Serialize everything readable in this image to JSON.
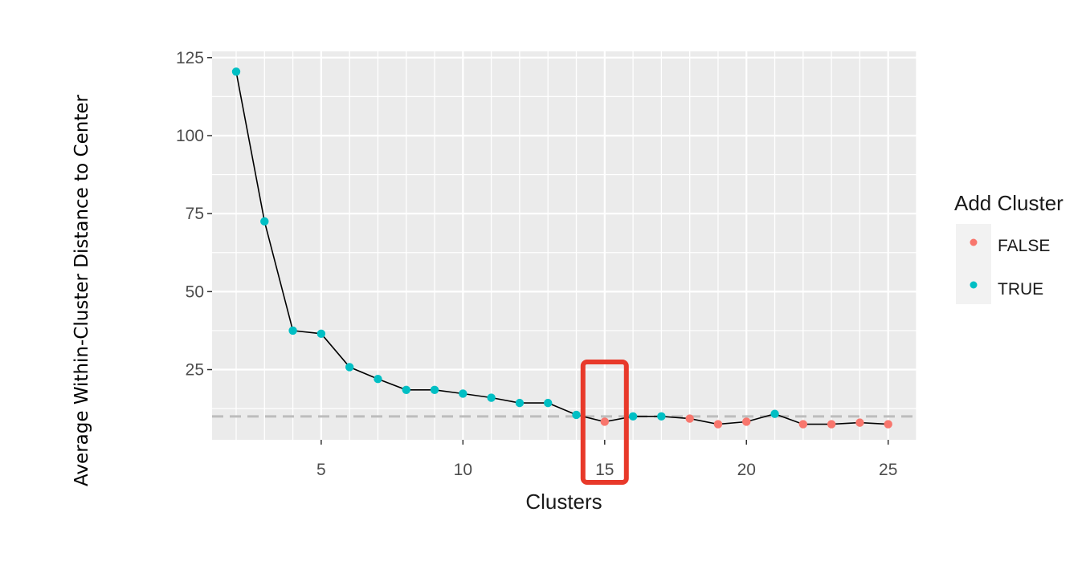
{
  "chart_data": {
    "type": "scatter",
    "xlabel": "Clusters",
    "ylabel": "Average Within-Cluster Distance to Center",
    "xlim": [
      1.15,
      26.0
    ],
    "ylim": [
      2.5,
      127
    ],
    "x_ticks": [
      5,
      10,
      15,
      20,
      25
    ],
    "y_ticks": [
      25,
      50,
      75,
      100,
      125
    ],
    "grid": true,
    "connecting_line": true,
    "reference_line": {
      "y": 10,
      "style": "dashed",
      "color": "#bdbdbd"
    },
    "highlight_box": {
      "x": 15,
      "color": "#e8392a"
    },
    "legend": {
      "title": "Add Cluster",
      "placement": "right",
      "entries": [
        {
          "label": "FALSE",
          "color": "#f8766d"
        },
        {
          "label": "TRUE",
          "color": "#00bfc4"
        }
      ]
    },
    "points": [
      {
        "x": 2,
        "y": 120.5,
        "group": "TRUE"
      },
      {
        "x": 3,
        "y": 72.5,
        "group": "TRUE"
      },
      {
        "x": 4,
        "y": 37.5,
        "group": "TRUE"
      },
      {
        "x": 5,
        "y": 36.5,
        "group": "TRUE"
      },
      {
        "x": 6,
        "y": 25.8,
        "group": "TRUE"
      },
      {
        "x": 7,
        "y": 22.0,
        "group": "TRUE"
      },
      {
        "x": 8,
        "y": 18.5,
        "group": "TRUE"
      },
      {
        "x": 9,
        "y": 18.5,
        "group": "TRUE"
      },
      {
        "x": 10,
        "y": 17.3,
        "group": "TRUE"
      },
      {
        "x": 11,
        "y": 16.0,
        "group": "TRUE"
      },
      {
        "x": 12,
        "y": 14.3,
        "group": "TRUE"
      },
      {
        "x": 13,
        "y": 14.3,
        "group": "TRUE"
      },
      {
        "x": 14,
        "y": 10.5,
        "group": "TRUE"
      },
      {
        "x": 15,
        "y": 8.3,
        "group": "FALSE"
      },
      {
        "x": 16,
        "y": 10.0,
        "group": "TRUE"
      },
      {
        "x": 17,
        "y": 10.0,
        "group": "TRUE"
      },
      {
        "x": 18,
        "y": 9.3,
        "group": "FALSE"
      },
      {
        "x": 19,
        "y": 7.5,
        "group": "FALSE"
      },
      {
        "x": 20,
        "y": 8.3,
        "group": "FALSE"
      },
      {
        "x": 21,
        "y": 10.8,
        "group": "TRUE"
      },
      {
        "x": 22,
        "y": 7.5,
        "group": "FALSE"
      },
      {
        "x": 23,
        "y": 7.5,
        "group": "FALSE"
      },
      {
        "x": 24,
        "y": 8.0,
        "group": "FALSE"
      },
      {
        "x": 25,
        "y": 7.5,
        "group": "FALSE"
      }
    ]
  }
}
